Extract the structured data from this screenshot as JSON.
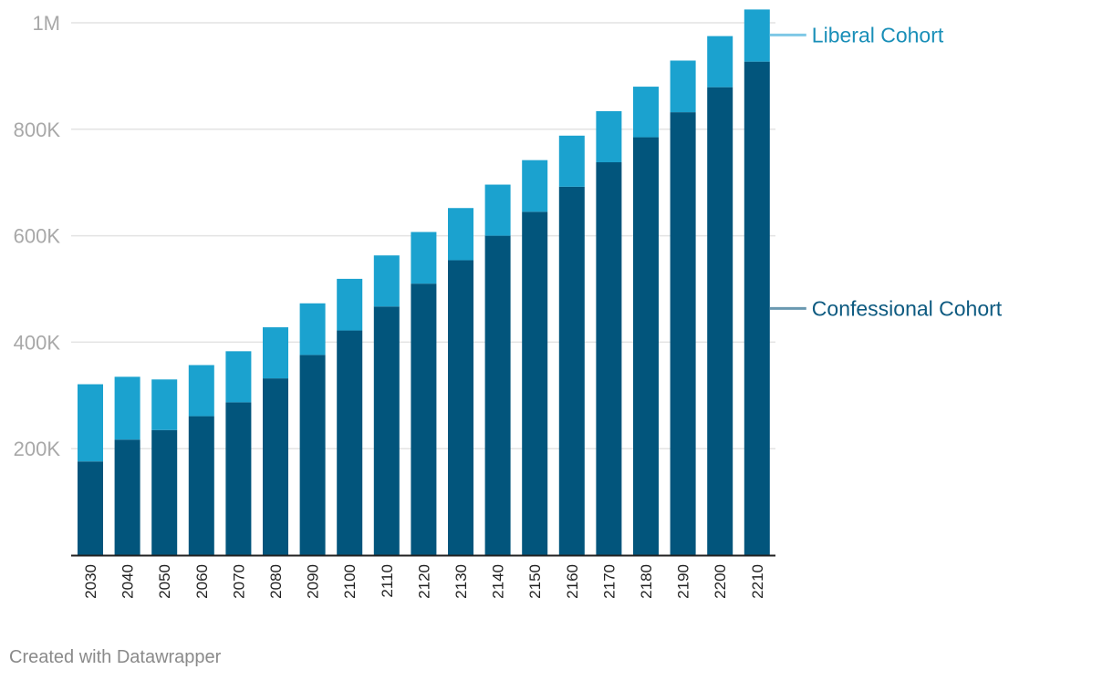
{
  "chart_data": {
    "type": "bar",
    "stacked": true,
    "categories": [
      "2030",
      "2040",
      "2050",
      "2060",
      "2070",
      "2080",
      "2090",
      "2100",
      "2110",
      "2120",
      "2130",
      "2140",
      "2150",
      "2160",
      "2170",
      "2180",
      "2190",
      "2200",
      "2210"
    ],
    "series": [
      {
        "name": "Confessional Cohort",
        "color": "#02557c",
        "values": [
          176000,
          217000,
          235000,
          261000,
          287000,
          332000,
          376000,
          422000,
          467000,
          510000,
          554000,
          600000,
          645000,
          692000,
          738000,
          785000,
          832000,
          879000,
          927000
        ]
      },
      {
        "name": "Liberal Cohort",
        "color": "#1ba2cf",
        "values": [
          145000,
          118000,
          95000,
          96000,
          96000,
          96000,
          97000,
          97000,
          96000,
          97000,
          98000,
          96000,
          97000,
          96000,
          96000,
          95000,
          97000,
          96000,
          98000
        ]
      }
    ],
    "yticks": [
      200000,
      400000,
      600000,
      800000,
      1000000
    ],
    "ytick_labels": [
      "200K",
      "400K",
      "600K",
      "800K",
      "1M"
    ],
    "ylim": [
      0,
      1000000
    ],
    "grid": true,
    "legend": "direct labels right"
  },
  "footer": {
    "credit": "Created with Datawrapper"
  }
}
